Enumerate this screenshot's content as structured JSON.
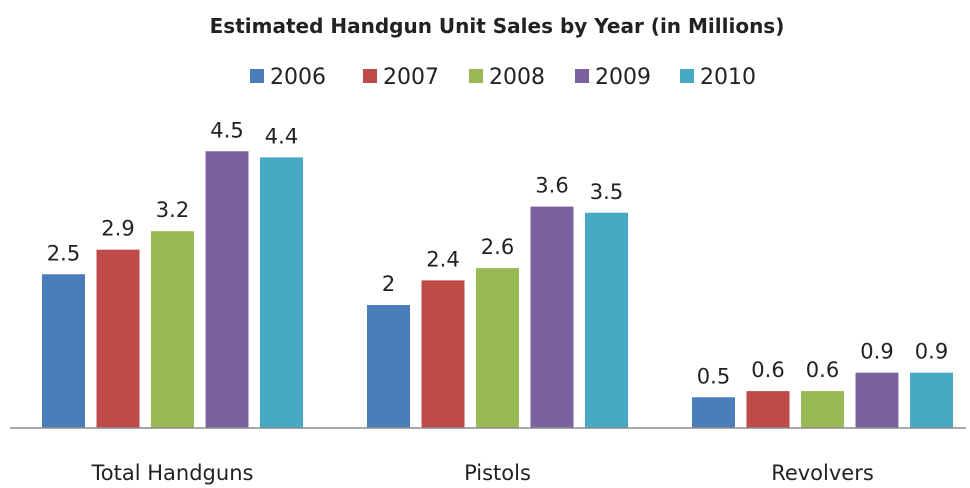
{
  "chart_data": {
    "type": "bar",
    "title": "Estimated Handgun Unit Sales by Year (in Millions)",
    "xlabel": "",
    "ylabel": "",
    "categories": [
      "Total Handguns",
      "Pistols",
      "Revolvers"
    ],
    "series": [
      {
        "name": "2006",
        "color": "#4a7ebb",
        "values": [
          2.5,
          2,
          0.5
        ],
        "labels": [
          "2.5",
          "2",
          "0.5"
        ]
      },
      {
        "name": "2007",
        "color": "#be4b48",
        "values": [
          2.9,
          2.4,
          0.6
        ],
        "labels": [
          "2.9",
          "2.4",
          "0.6"
        ]
      },
      {
        "name": "2008",
        "color": "#98b954",
        "values": [
          3.2,
          2.6,
          0.6
        ],
        "labels": [
          "3.2",
          "2.6",
          "0.6"
        ]
      },
      {
        "name": "2009",
        "color": "#7d60a0",
        "values": [
          4.5,
          3.6,
          0.9
        ],
        "labels": [
          "4.5",
          "3.6",
          "0.9"
        ]
      },
      {
        "name": "2010",
        "color": "#46aac5",
        "values": [
          4.4,
          3.5,
          0.9
        ],
        "labels": [
          "4.4",
          "3.5",
          "0.9"
        ]
      }
    ],
    "ylim": [
      0,
      4.5
    ],
    "grid": false,
    "legend_position": "top"
  }
}
